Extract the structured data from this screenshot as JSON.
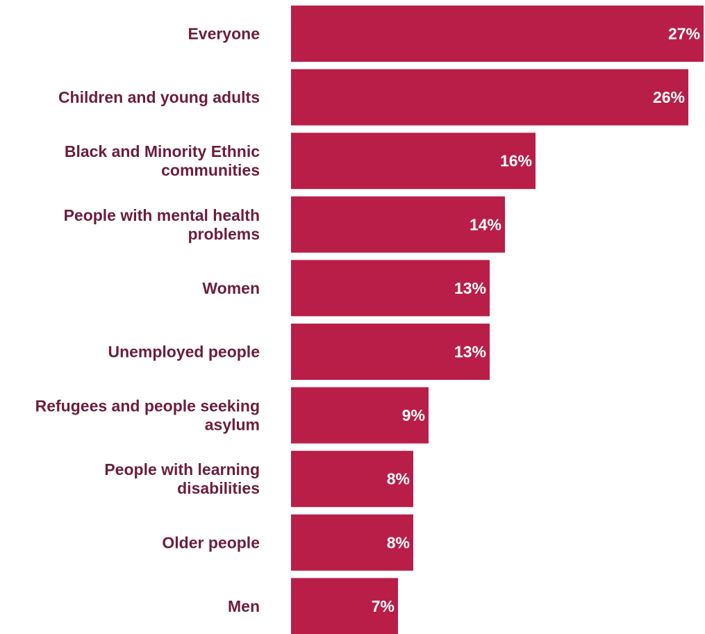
{
  "chart_data": {
    "type": "bar",
    "orientation": "horizontal",
    "categories": [
      "Everyone",
      "Children and young adults",
      "Black and Minority Ethnic communities",
      "People with mental health problems",
      "Women",
      "Unemployed people",
      "Refugees and people seeking asylum",
      "People with learning disabilities",
      "Older people",
      "Men"
    ],
    "category_lines": [
      [
        "Everyone"
      ],
      [
        "Children and young adults"
      ],
      [
        "Black and Minority Ethnic",
        "communities"
      ],
      [
        "People with mental health",
        "problems"
      ],
      [
        "Women"
      ],
      [
        "Unemployed people"
      ],
      [
        "Refugees and people seeking",
        "asylum"
      ],
      [
        "People with learning",
        "disabilities"
      ],
      [
        "Older people"
      ],
      [
        "Men"
      ]
    ],
    "values": [
      27,
      26,
      16,
      14,
      13,
      13,
      9,
      8,
      8,
      7
    ],
    "value_labels": [
      "27%",
      "26%",
      "16%",
      "14%",
      "13%",
      "13%",
      "9%",
      "8%",
      "8%",
      "7%"
    ],
    "unit": "%",
    "xlim": [
      0,
      27
    ],
    "grid": false,
    "legend": "none",
    "colors": {
      "bar": "#B91E48",
      "label": "#6B1D3E",
      "value_text": "#FFFFFF"
    }
  }
}
